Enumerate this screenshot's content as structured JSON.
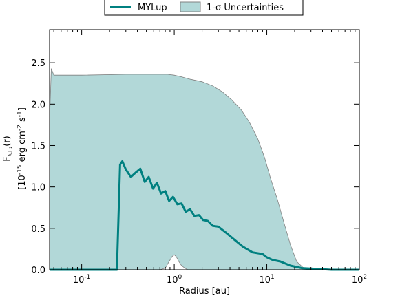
{
  "chart_data": {
    "type": "area",
    "xscale": "log",
    "xlim": [
      0.045,
      100
    ],
    "ylim": [
      0.0,
      2.9
    ],
    "xlabel": "Radius [au]",
    "ylabel_line1": "F",
    "ylabel_sub": "λ,H₂",
    "ylabel_line1_suffix": "(r)",
    "ylabel_line2_pre": "[10",
    "ylabel_line2_exp1": "-15",
    "ylabel_line2_mid": " erg cm",
    "ylabel_line2_exp2": "-2",
    "ylabel_line2_mid2": " s",
    "ylabel_line2_exp3": "-1",
    "ylabel_line2_post": "]",
    "xticks": [
      {
        "value": 0.1,
        "base": "10",
        "exp": "-1"
      },
      {
        "value": 1,
        "base": "10",
        "exp": "0"
      },
      {
        "value": 10,
        "base": "10",
        "exp": "1"
      },
      {
        "value": 100,
        "base": "10",
        "exp": "2"
      }
    ],
    "yticks": [
      {
        "value": 0.0,
        "label": "0.0"
      },
      {
        "value": 0.5,
        "label": "0.5"
      },
      {
        "value": 1.0,
        "label": "1.0"
      },
      {
        "value": 1.5,
        "label": "1.5"
      },
      {
        "value": 2.0,
        "label": "2.0"
      },
      {
        "value": 2.5,
        "label": "2.5"
      }
    ],
    "legend": {
      "placement": "top-center",
      "line_label": "MYLup",
      "band_label": "1-σ Uncertainties"
    },
    "series": [
      {
        "name": "MYLup",
        "color": "#008080",
        "x": [
          0.045,
          0.24,
          0.26,
          0.275,
          0.3,
          0.34,
          0.38,
          0.43,
          0.48,
          0.53,
          0.59,
          0.65,
          0.72,
          0.8,
          0.88,
          0.97,
          1.08,
          1.2,
          1.33,
          1.48,
          1.65,
          1.85,
          2.05,
          2.3,
          2.6,
          3.0,
          3.6,
          4.5,
          5.5,
          7.0,
          9.0,
          10.0,
          11.5,
          14,
          18,
          24,
          35,
          50,
          100
        ],
        "y": [
          0.0,
          0.0,
          1.27,
          1.31,
          1.21,
          1.12,
          1.17,
          1.22,
          1.06,
          1.12,
          0.98,
          1.05,
          0.92,
          0.95,
          0.83,
          0.88,
          0.79,
          0.8,
          0.7,
          0.73,
          0.65,
          0.66,
          0.6,
          0.59,
          0.53,
          0.52,
          0.45,
          0.36,
          0.28,
          0.21,
          0.19,
          0.15,
          0.12,
          0.1,
          0.05,
          0.02,
          0.01,
          0.0,
          0.0
        ]
      }
    ],
    "band": {
      "name": "1-σ Uncertainties",
      "fill": "#b2d8d8",
      "edge": "#808080",
      "x_upper": [
        0.045,
        0.047,
        0.05,
        0.1,
        0.3,
        0.6,
        0.85,
        1.0,
        1.2,
        1.5,
        2.0,
        2.6,
        3.3,
        4.2,
        5.3,
        6.5,
        8.0,
        9.5,
        11.0,
        13.0,
        15.5,
        18.0,
        21.0,
        24.5,
        28.0,
        33.0,
        40.0,
        50.0,
        100.0
      ],
      "upper": [
        1.8,
        2.43,
        2.35,
        2.35,
        2.36,
        2.36,
        2.36,
        2.35,
        2.33,
        2.3,
        2.27,
        2.22,
        2.15,
        2.05,
        1.93,
        1.78,
        1.58,
        1.35,
        1.1,
        0.85,
        0.55,
        0.3,
        0.1,
        0.03,
        0.01,
        0.0,
        0.0,
        0.0,
        0.0
      ],
      "x_lower": [
        0.045,
        0.7,
        0.8,
        0.88,
        0.95,
        1.0,
        1.05,
        1.12,
        1.2,
        1.3,
        1.4,
        100.0
      ],
      "lower": [
        0.0,
        0.0,
        0.02,
        0.1,
        0.16,
        0.18,
        0.16,
        0.1,
        0.05,
        0.02,
        0.0,
        0.0
      ]
    }
  }
}
